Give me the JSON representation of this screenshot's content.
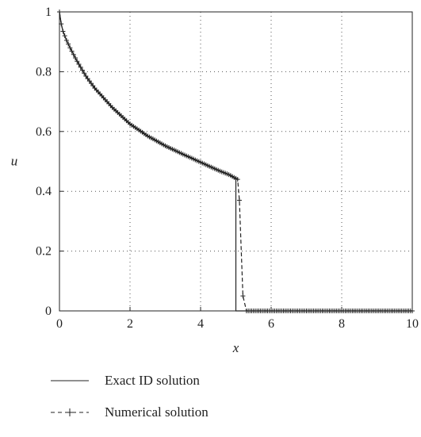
{
  "chart_data": {
    "type": "line",
    "xlabel": "x",
    "ylabel": "u",
    "xlim": [
      0,
      10
    ],
    "ylim": [
      0,
      1
    ],
    "xticks": [
      "0",
      "2",
      "4",
      "6",
      "8",
      "10"
    ],
    "yticks": [
      "0",
      "0.2",
      "0.4",
      "0.6",
      "0.8",
      "1"
    ],
    "grid": true,
    "grid_style": "dotted",
    "legend_position": "bottom",
    "series": [
      {
        "name": "Exact ID solution",
        "style": "solid",
        "marker": "none",
        "color": "#222222",
        "x": [
          0,
          0.05,
          0.1,
          0.2,
          0.3,
          0.5,
          0.75,
          1.0,
          1.5,
          2.0,
          2.5,
          3.0,
          3.5,
          4.0,
          4.5,
          4.8,
          5.0,
          5.0,
          5.1,
          6.0,
          8.0,
          10.0
        ],
        "y": [
          1.0,
          0.96,
          0.935,
          0.905,
          0.88,
          0.835,
          0.785,
          0.745,
          0.68,
          0.625,
          0.585,
          0.552,
          0.524,
          0.497,
          0.47,
          0.456,
          0.44,
          0.0,
          0.0,
          0.0,
          0.0,
          0.0
        ]
      },
      {
        "name": "Numerical solution",
        "style": "dashed",
        "marker": "+",
        "color": "#222222",
        "x": [
          0,
          0.05,
          0.1,
          0.2,
          0.3,
          0.5,
          0.75,
          1.0,
          1.5,
          2.0,
          2.5,
          3.0,
          3.5,
          4.0,
          4.5,
          4.8,
          5.05,
          5.1,
          5.2,
          5.3,
          6.0,
          8.0,
          10.0
        ],
        "y": [
          1.0,
          0.96,
          0.935,
          0.905,
          0.88,
          0.835,
          0.785,
          0.745,
          0.68,
          0.625,
          0.585,
          0.552,
          0.524,
          0.497,
          0.47,
          0.456,
          0.44,
          0.37,
          0.05,
          0.0,
          0.0,
          0.0,
          0.0
        ]
      }
    ]
  }
}
